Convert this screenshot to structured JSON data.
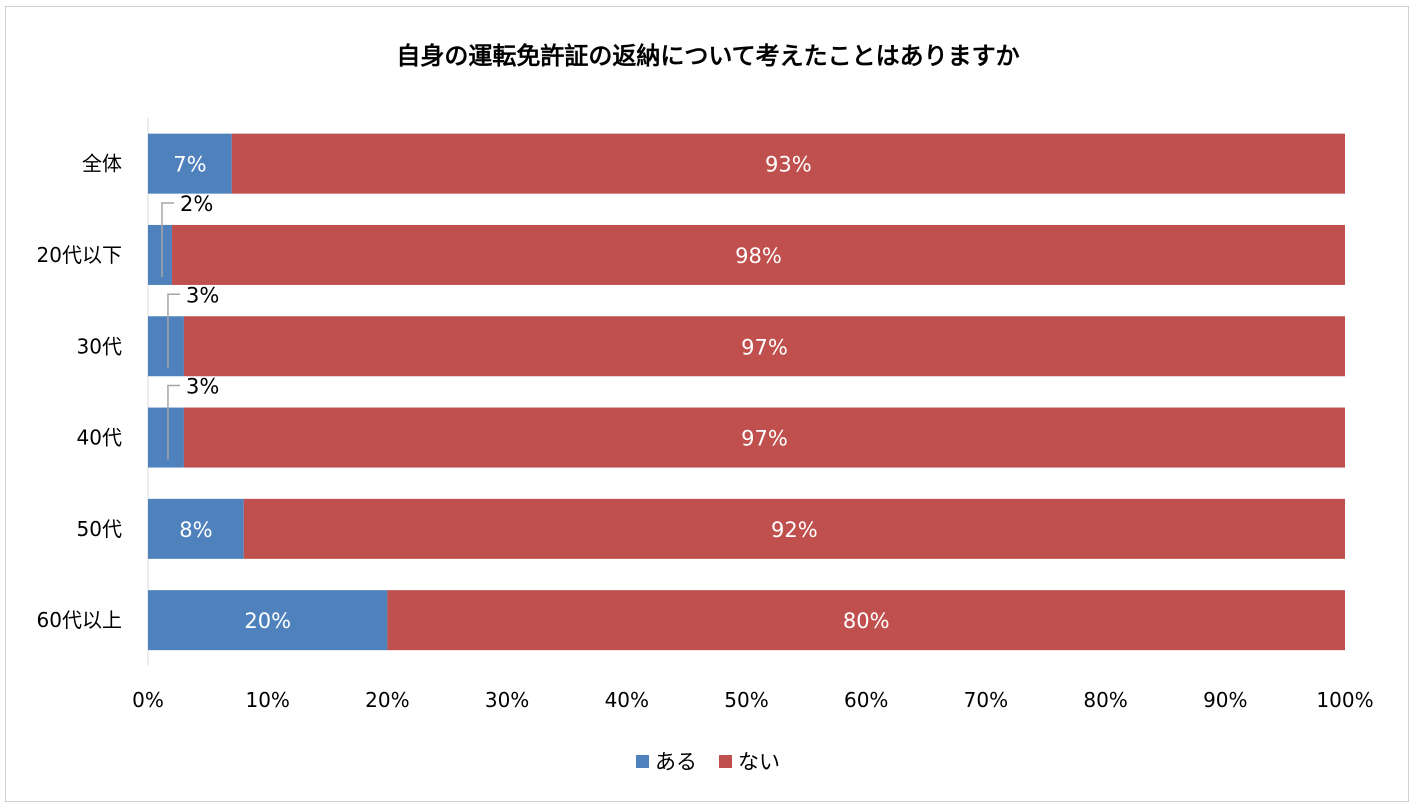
{
  "title": "自身の運転免許証の返納について考えたことはありますか",
  "colors": {
    "aru": "#4f81bd",
    "nai": "#c0504d",
    "axis": "#d9d9d9",
    "leader": "#a6a6a6"
  },
  "legend": [
    {
      "label": "ある",
      "color": "#4f81bd"
    },
    {
      "label": "ない",
      "color": "#c0504d"
    }
  ],
  "chart_data": {
    "type": "bar",
    "orientation": "horizontal",
    "stacked": true,
    "categories": [
      "全体",
      "20代以下",
      "30代",
      "40代",
      "50代",
      "60代以上"
    ],
    "series": [
      {
        "name": "ある",
        "values": [
          7,
          2,
          3,
          3,
          8,
          20
        ],
        "labels": [
          "7%",
          "2%",
          "3%",
          "3%",
          "8%",
          "20%"
        ]
      },
      {
        "name": "ない",
        "values": [
          93,
          98,
          97,
          97,
          92,
          80
        ],
        "labels": [
          "93%",
          "98%",
          "97%",
          "97%",
          "92%",
          "80%"
        ]
      }
    ],
    "xlim": [
      0,
      100
    ],
    "xticks": [
      "0%",
      "10%",
      "20%",
      "30%",
      "40%",
      "50%",
      "60%",
      "70%",
      "80%",
      "90%",
      "100%"
    ],
    "grid": false,
    "legend_position": "bottom"
  }
}
